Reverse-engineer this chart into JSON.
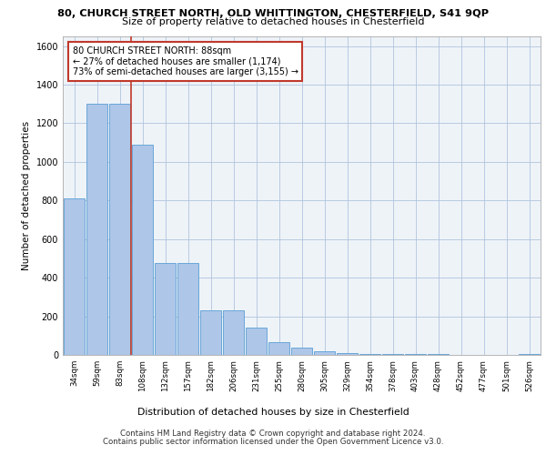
{
  "title_line1": "80, CHURCH STREET NORTH, OLD WHITTINGTON, CHESTERFIELD, S41 9QP",
  "title_line2": "Size of property relative to detached houses in Chesterfield",
  "xlabel": "Distribution of detached houses by size in Chesterfield",
  "ylabel": "Number of detached properties",
  "categories": [
    "34sqm",
    "59sqm",
    "83sqm",
    "108sqm",
    "132sqm",
    "157sqm",
    "182sqm",
    "206sqm",
    "231sqm",
    "255sqm",
    "280sqm",
    "305sqm",
    "329sqm",
    "354sqm",
    "378sqm",
    "403sqm",
    "428sqm",
    "452sqm",
    "477sqm",
    "501sqm",
    "526sqm"
  ],
  "values": [
    810,
    1300,
    1300,
    1090,
    475,
    475,
    230,
    230,
    140,
    65,
    38,
    20,
    10,
    7,
    7,
    5,
    5,
    2,
    2,
    2,
    5
  ],
  "bar_color": "#aec6e8",
  "bar_edge_color": "#5a9fd4",
  "vline_x": 2.5,
  "vline_color": "#c0392b",
  "annotation_text": "80 CHURCH STREET NORTH: 88sqm\n← 27% of detached houses are smaller (1,174)\n73% of semi-detached houses are larger (3,155) →",
  "annotation_box_color": "white",
  "annotation_box_edge": "#c0392b",
  "ylim": [
    0,
    1650
  ],
  "yticks": [
    0,
    200,
    400,
    600,
    800,
    1000,
    1200,
    1400,
    1600
  ],
  "grid_color": "#b0c4de",
  "bg_color": "#eef3f8",
  "footer1": "Contains HM Land Registry data © Crown copyright and database right 2024.",
  "footer2": "Contains public sector information licensed under the Open Government Licence v3.0."
}
